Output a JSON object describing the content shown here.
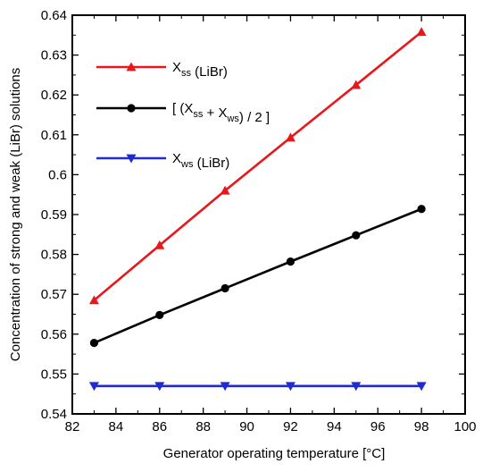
{
  "chart_data": {
    "type": "line",
    "xlabel": "Generator operating temperature [°C]",
    "ylabel": "Concentration of strong and weak (LiBr) solutions",
    "xlim": [
      82,
      100
    ],
    "ylim": [
      0.54,
      0.64
    ],
    "x_ticks": [
      "82",
      "84",
      "86",
      "88",
      "90",
      "92",
      "94",
      "96",
      "98",
      "100"
    ],
    "y_ticks": [
      "0.54",
      "0.55",
      "0.56",
      "0.57",
      "0.58",
      "0.59",
      "0.6",
      "0.61",
      "0.62",
      "0.63",
      "0.64"
    ],
    "grid": false,
    "legend_placement": "top-left",
    "x": [
      83,
      86,
      89,
      92,
      95,
      98
    ],
    "series": [
      {
        "key": "xss",
        "legend_main": "X",
        "legend_sub": "ss",
        "legend_tail": " (LiBr)",
        "color": "#e8171c",
        "marker": "triangle-up",
        "values": [
          0.5685,
          0.5823,
          0.596,
          0.6093,
          0.6225,
          0.6358
        ]
      },
      {
        "key": "avg",
        "legend_main": "[ (X",
        "legend_sub": "ss",
        "legend_mid": " + X",
        "legend_sub2": "ws",
        "legend_tail": ") / 2 ]",
        "color": "#000000",
        "marker": "circle",
        "values": [
          0.5578,
          0.5648,
          0.5715,
          0.5782,
          0.5848,
          0.5914
        ]
      },
      {
        "key": "xws",
        "legend_main": "X",
        "legend_sub": "ws",
        "legend_tail": " (LiBr)",
        "color": "#1f2bd0",
        "marker": "triangle-down",
        "values": [
          0.547,
          0.547,
          0.547,
          0.547,
          0.547,
          0.547
        ]
      }
    ]
  }
}
